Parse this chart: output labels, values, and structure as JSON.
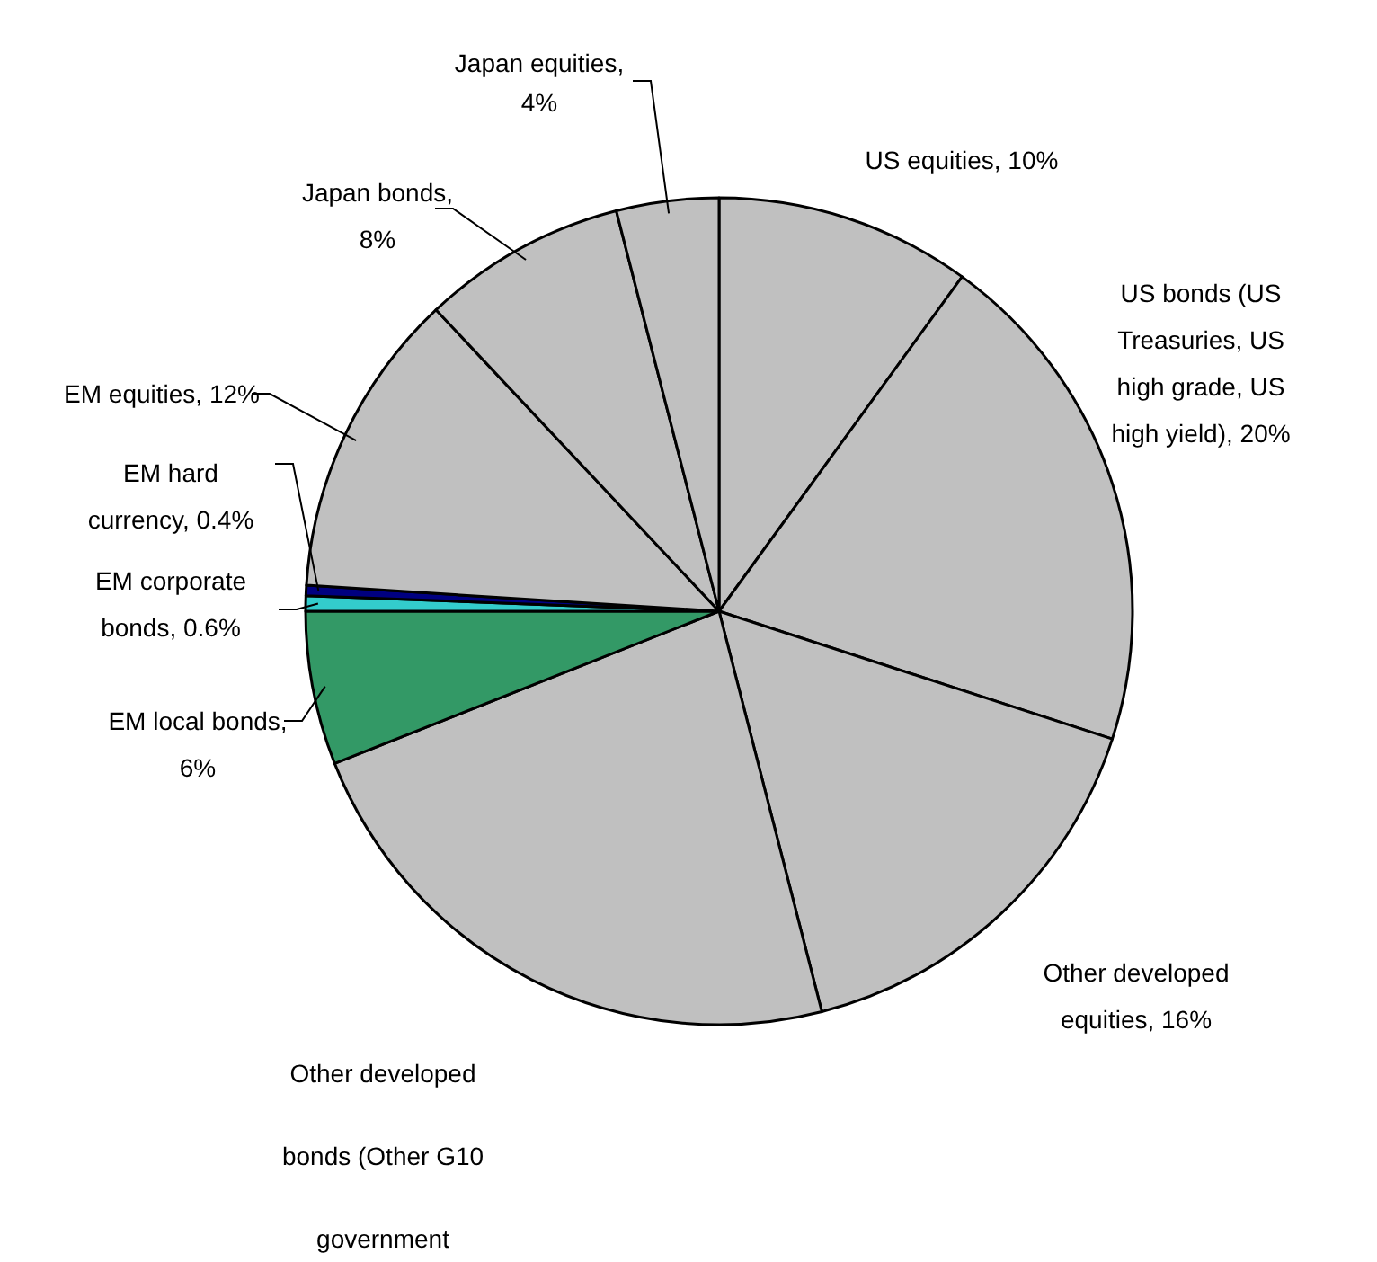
{
  "chart_data": {
    "type": "pie",
    "categories": [
      "US equities, 10%",
      "US bonds (US Treasuries, US high grade, US high yield), 20%",
      "Other developed equities, 16%",
      "Other developed bonds (Other G10 government",
      "EM local bonds, 6%",
      "EM corporate bonds, 0.6%",
      "EM hard currency, 0.4%",
      "EM equities, 12%",
      "Japan bonds, 8%",
      "Japan equities, 4%"
    ],
    "values": [
      10,
      20,
      16,
      23,
      6,
      0.6,
      0.4,
      12,
      8,
      4
    ],
    "colors": [
      "#c0c0c0",
      "#c0c0c0",
      "#c0c0c0",
      "#c0c0c0",
      "#339966",
      "#33cccc",
      "#000080",
      "#c0c0c0",
      "#c0c0c0",
      "#c0c0c0"
    ]
  }
}
